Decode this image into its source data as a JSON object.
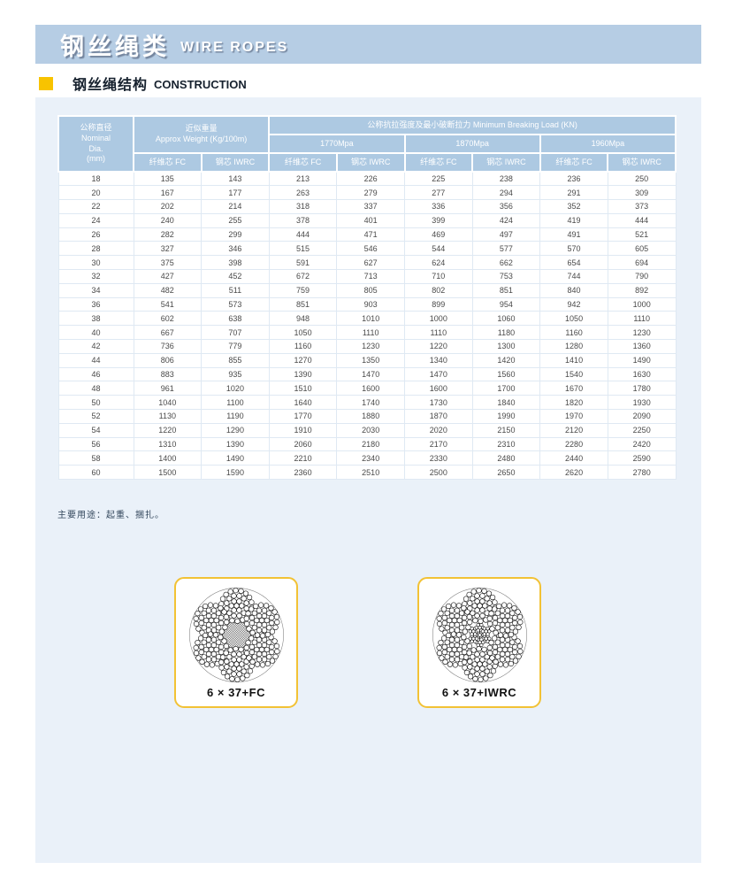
{
  "banner": {
    "title_zh": "钢丝绳类",
    "title_en": "WIRE ROPES"
  },
  "section": {
    "title_zh": "钢丝绳结构",
    "title_en": "CONSTRUCTION"
  },
  "table": {
    "header": {
      "dia_zh": "公称直径",
      "dia_en1": "Nominal",
      "dia_en2": "Dia.",
      "dia_en3": "(mm)",
      "weight_zh": "近似重量",
      "weight_en": "Approx Weight (Kg/100m)",
      "breaking": "公称抗拉强度及最小破断拉力 Minimum Breaking Load (KN)",
      "grades": [
        "1770Mpa",
        "1870Mpa",
        "1960Mpa"
      ],
      "fc": "纤维芯 FC",
      "iwrc": "钢芯 IWRC"
    },
    "rows": [
      [
        18,
        135,
        143,
        213,
        226,
        225,
        238,
        236,
        250
      ],
      [
        20,
        167,
        177,
        263,
        279,
        277,
        294,
        291,
        309
      ],
      [
        22,
        202,
        214,
        318,
        337,
        336,
        356,
        352,
        373
      ],
      [
        24,
        240,
        255,
        378,
        401,
        399,
        424,
        419,
        444
      ],
      [
        26,
        282,
        299,
        444,
        471,
        469,
        497,
        491,
        521
      ],
      [
        28,
        327,
        346,
        515,
        546,
        544,
        577,
        570,
        605
      ],
      [
        30,
        375,
        398,
        591,
        627,
        624,
        662,
        654,
        694
      ],
      [
        32,
        427,
        452,
        672,
        713,
        710,
        753,
        744,
        790
      ],
      [
        34,
        482,
        511,
        759,
        805,
        802,
        851,
        840,
        892
      ],
      [
        36,
        541,
        573,
        851,
        903,
        899,
        954,
        942,
        1000
      ],
      [
        38,
        602,
        638,
        948,
        1010,
        1000,
        1060,
        1050,
        1110
      ],
      [
        40,
        667,
        707,
        1050,
        1110,
        1110,
        1180,
        1160,
        1230
      ],
      [
        42,
        736,
        779,
        1160,
        1230,
        1220,
        1300,
        1280,
        1360
      ],
      [
        44,
        806,
        855,
        1270,
        1350,
        1340,
        1420,
        1410,
        1490
      ],
      [
        46,
        883,
        935,
        1390,
        1470,
        1470,
        1560,
        1540,
        1630
      ],
      [
        48,
        961,
        1020,
        1510,
        1600,
        1600,
        1700,
        1670,
        1780
      ],
      [
        50,
        1040,
        1100,
        1640,
        1740,
        1730,
        1840,
        1820,
        1930
      ],
      [
        52,
        1130,
        1190,
        1770,
        1880,
        1870,
        1990,
        1970,
        2090
      ],
      [
        54,
        1220,
        1290,
        1910,
        2030,
        2020,
        2150,
        2120,
        2250
      ],
      [
        56,
        1310,
        1390,
        2060,
        2180,
        2170,
        2310,
        2280,
        2420
      ],
      [
        58,
        1400,
        1490,
        2210,
        2340,
        2330,
        2480,
        2440,
        2590
      ],
      [
        60,
        1500,
        1590,
        2360,
        2510,
        2500,
        2650,
        2620,
        2780
      ]
    ]
  },
  "note": "主要用途：起重、捆扎。",
  "diagrams": [
    {
      "label": "6 × 37+FC",
      "core": "fc"
    },
    {
      "label": "6 × 37+IWRC",
      "core": "iwrc"
    }
  ],
  "colors": {
    "banner_blue": "#b6cde4",
    "panel_blue": "#eaf1f9",
    "table_header_blue": "#adc9e2",
    "accent_yellow": "#f8c300",
    "card_border_yellow": "#f2c235"
  }
}
